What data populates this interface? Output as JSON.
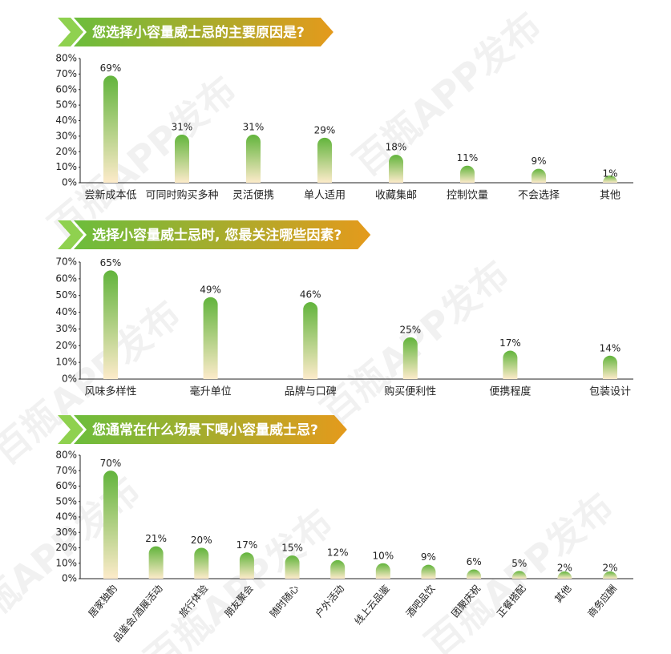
{
  "watermark": "百瓶APP发布",
  "chart_data": [
    {
      "type": "bar",
      "title": "您选择小容量威士忌的主要原因是?",
      "categories": [
        "尝新成本低",
        "可同时购买多种",
        "灵活便携",
        "单人适用",
        "收藏集邮",
        "控制饮量",
        "不会选择",
        "其他"
      ],
      "values": [
        69,
        31,
        31,
        29,
        18,
        11,
        9,
        1
      ],
      "value_labels": [
        "69%",
        "31%",
        "31%",
        "29%",
        "18%",
        "11%",
        "9%",
        "1%"
      ],
      "colors": [
        "#62b43c",
        "#fdebca"
      ],
      "ylim": [
        0,
        80
      ],
      "yticks": [
        {
          "value": 0,
          "label": "0%"
        },
        {
          "value": 10,
          "label": "10%"
        },
        {
          "value": 20,
          "label": "20%"
        },
        {
          "value": 30,
          "label": "30%"
        },
        {
          "value": 40,
          "label": "40%"
        },
        {
          "value": 50,
          "label": "50%"
        },
        {
          "value": 60,
          "label": "60%"
        },
        {
          "value": 70,
          "label": "70%"
        },
        {
          "value": 80,
          "label": "80%"
        }
      ]
    },
    {
      "type": "bar",
      "title": "选择小容量威士忌时, 您最关注哪些因素?",
      "categories": [
        "风味多样性",
        "毫升单位",
        "品牌与口碑",
        "购买便利性",
        "便携程度",
        "包装设计"
      ],
      "values": [
        65,
        49,
        46,
        25,
        17,
        14
      ],
      "value_labels": [
        "65%",
        "49%",
        "46%",
        "25%",
        "17%",
        "14%"
      ],
      "colors": [
        "#62b43c",
        "#fdebca"
      ],
      "ylim": [
        0,
        70
      ],
      "yticks": [
        {
          "value": 0,
          "label": "0%"
        },
        {
          "value": 10,
          "label": "10%"
        },
        {
          "value": 20,
          "label": "20%"
        },
        {
          "value": 30,
          "label": "30%"
        },
        {
          "value": 40,
          "label": "40%"
        },
        {
          "value": 50,
          "label": "50%"
        },
        {
          "value": 60,
          "label": "60%"
        },
        {
          "value": 70,
          "label": "70%"
        }
      ]
    },
    {
      "type": "bar",
      "title": "您通常在什么场景下喝小容量威士忌?",
      "categories": [
        "居家独酌",
        "品鉴会/酒展活动",
        "旅行体验",
        "朋友聚会",
        "随时随心",
        "户外活动",
        "线上云品鉴",
        "酒吧品饮",
        "团聚庆祝",
        "正餐搭配",
        "其他",
        "商务应酬"
      ],
      "values": [
        70,
        21,
        20,
        17,
        15,
        12,
        10,
        9,
        6,
        5,
        2,
        2
      ],
      "value_labels": [
        "70%",
        "21%",
        "20%",
        "17%",
        "15%",
        "12%",
        "10%",
        "9%",
        "6%",
        "5%",
        "2%",
        "2%"
      ],
      "colors": [
        "#62b43c",
        "#fdebca"
      ],
      "ylim": [
        0,
        80
      ],
      "yticks": [
        {
          "value": 0,
          "label": "0%"
        },
        {
          "value": 10,
          "label": "10%"
        },
        {
          "value": 20,
          "label": "20%"
        },
        {
          "value": 30,
          "label": "30%"
        },
        {
          "value": 40,
          "label": "40%"
        },
        {
          "value": 50,
          "label": "50%"
        },
        {
          "value": 60,
          "label": "60%"
        },
        {
          "value": 70,
          "label": "70%"
        },
        {
          "value": 80,
          "label": "80%"
        }
      ]
    }
  ]
}
